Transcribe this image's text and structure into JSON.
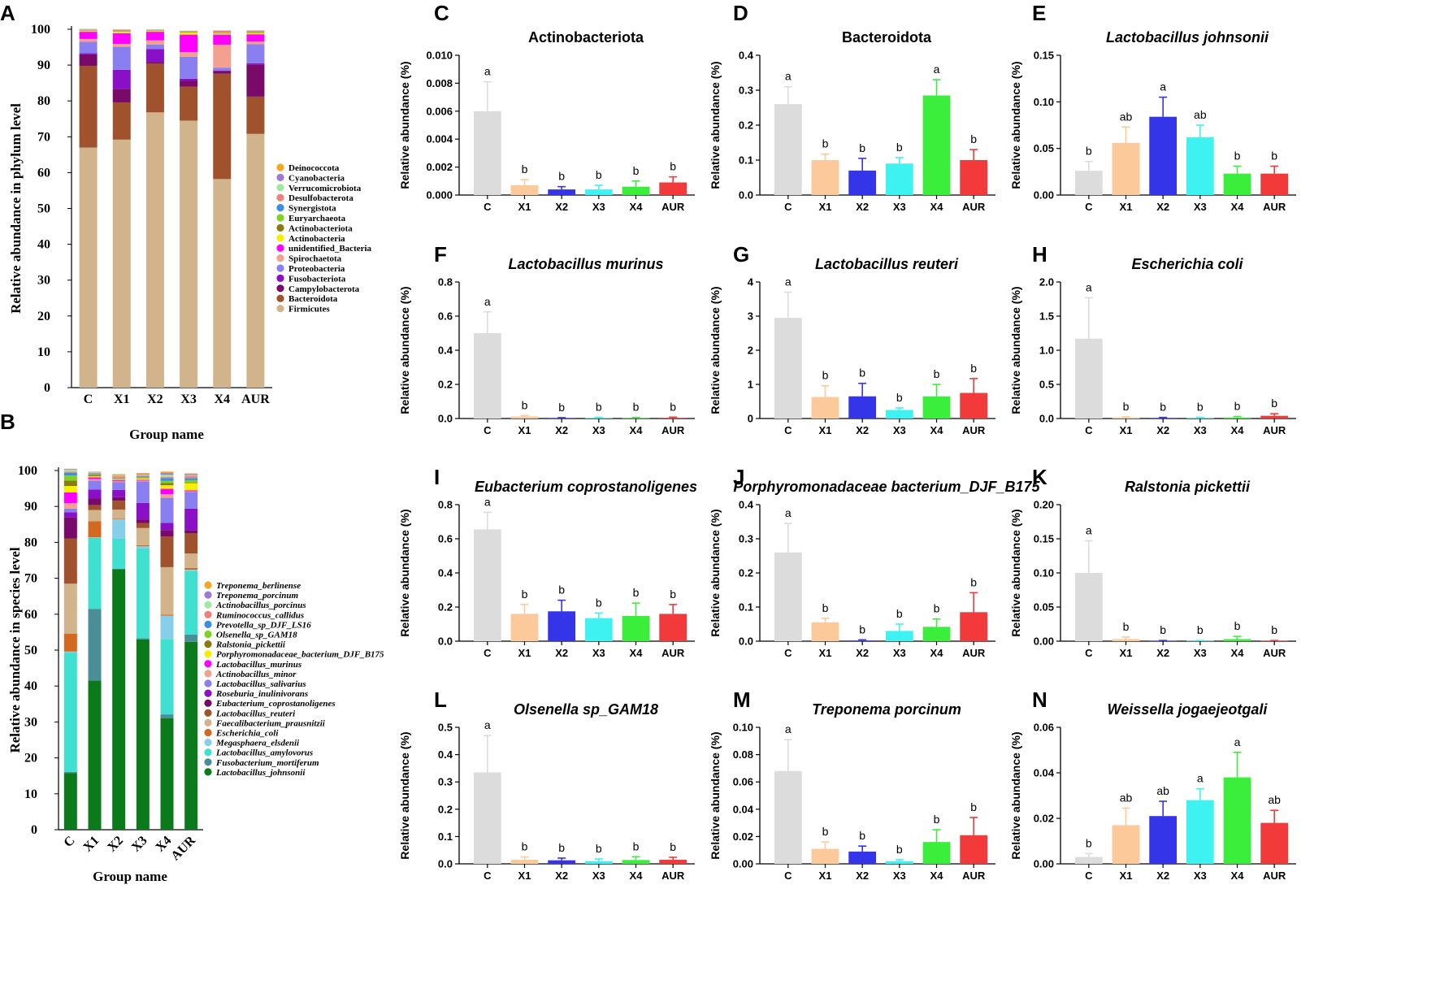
{
  "chart_data": [
    {
      "panel": "A",
      "type": "stacked-bar",
      "categories": [
        "C",
        "X1",
        "X2",
        "X3",
        "X4",
        "AUR"
      ],
      "xlabel": "Group name",
      "ylabel": "Relative abundance in phylum level",
      "ylim": [
        0,
        100
      ],
      "yticks": [
        0,
        10,
        20,
        30,
        40,
        50,
        60,
        70,
        80,
        90,
        100
      ],
      "legend_italic": false,
      "legend": [
        "Deinococcota",
        "Cyanobacteria",
        "Verrucomicrobiota",
        "Desulfobacterota",
        "Synergistota",
        "Euryarchaeota",
        "Actinobacteriota",
        "Actinobacteria",
        "unidentified_Bacteria",
        "Spirochaetota",
        "Proteobacteria",
        "Fusobacteriota",
        "Campylobacterota",
        "Bacteroidota",
        "Firmicutes"
      ],
      "colors": [
        "#f5a623",
        "#9b7bd4",
        "#9ee8a0",
        "#f08080",
        "#3c8fe0",
        "#7ed321",
        "#8a7a10",
        "#f5f000",
        "#ff00ff",
        "#f4a090",
        "#8a7ff0",
        "#8a10c8",
        "#7a0a6a",
        "#a0522d",
        "#d2b48c"
      ],
      "series": [
        {
          "name": "Firmicutes",
          "values": [
            67,
            69.2,
            76.8,
            74.5,
            58.2,
            70.8
          ]
        },
        {
          "name": "Bacteroidota",
          "values": [
            22.8,
            10.4,
            13.6,
            9.5,
            29.4,
            10.4
          ]
        },
        {
          "name": "Campylobacterota",
          "values": [
            3.2,
            3.8,
            0.5,
            1.6,
            0.8,
            9.0
          ]
        },
        {
          "name": "Fusobacteriota",
          "values": [
            0.3,
            5.3,
            3.6,
            0.6,
            0.1,
            0.3
          ]
        },
        {
          "name": "Proteobacteria",
          "values": [
            3.2,
            6.4,
            1.2,
            6.1,
            0.8,
            5.3
          ]
        },
        {
          "name": "Spirochaetota",
          "values": [
            0.8,
            0.8,
            1.2,
            1.3,
            6.4,
            0.8
          ]
        },
        {
          "name": "unidentified_Bacteria",
          "values": [
            2.0,
            3.0,
            2.4,
            4.9,
            2.8,
            2.0
          ]
        },
        {
          "name": "Actinobacteria",
          "values": [
            0.2,
            0.4,
            0.2,
            0.6,
            0.3,
            0.3
          ]
        },
        {
          "name": "Actinobacteriota",
          "values": [
            0.1,
            0.1,
            0.1,
            0.1,
            0.1,
            0.1
          ]
        },
        {
          "name": "Euryarchaeota",
          "values": [
            0.1,
            0.1,
            0.1,
            0.1,
            0.1,
            0.2
          ]
        },
        {
          "name": "Synergistota",
          "values": [
            0.05,
            0.05,
            0.05,
            0.05,
            0.05,
            0.05
          ]
        },
        {
          "name": "Desulfobacterota",
          "values": [
            0.2,
            0.3,
            0.1,
            0.1,
            0.5,
            0.3
          ]
        },
        {
          "name": "Verrucomicrobiota",
          "values": [
            0.05,
            0.05,
            0.05,
            0.05,
            0.05,
            0.05
          ]
        },
        {
          "name": "Cyanobacteria",
          "values": [
            0.05,
            0.05,
            0.05,
            0.05,
            0.05,
            0.05
          ]
        },
        {
          "name": "Deinococcota",
          "values": [
            0.05,
            0.05,
            0.05,
            0.05,
            0.05,
            0.05
          ]
        }
      ]
    },
    {
      "panel": "B",
      "type": "stacked-bar",
      "categories": [
        "C",
        "X1",
        "X2",
        "X3",
        "X4",
        "AUR"
      ],
      "xlabel": "Group name",
      "ylabel": "Relative abundance in species level",
      "ylim": [
        0,
        100
      ],
      "yticks": [
        0,
        10,
        20,
        30,
        40,
        50,
        60,
        70,
        80,
        90,
        100
      ],
      "legend_italic": true,
      "legend": [
        "Treponema_berlinense",
        "Treponema_porcinum",
        "Actinobacillus_porcinus",
        "Ruminococcus_callidus",
        "Prevotella_sp_DJF_LS16",
        "Olsenella_sp_GAM18",
        "Ralstonia_pickettii",
        "Porphyromonadaceae_bacterium_DJF_B175",
        "Lactobacillus_murinus",
        "Actinobacillus_minor",
        "Lactobacillus_salivarius",
        "Roseburia_inulinivorans",
        "Eubacterium_coprostanoligenes",
        "Lactobacillus_reuteri",
        "Faecalibacterium_prausnitzii",
        "Escherichia_coli",
        "Megasphaera_elsdenii",
        "Lactobacillus_amylovorus",
        "Fusobacterium_mortiferum",
        "Lactobacillus_johnsonii"
      ],
      "colors": [
        "#f5a623",
        "#9b7bd4",
        "#9ee8a0",
        "#f08080",
        "#3c8fe0",
        "#7ed321",
        "#8a7a10",
        "#f5f000",
        "#ff00ff",
        "#f4a090",
        "#8a7ff0",
        "#8a10c8",
        "#7a0a6a",
        "#a0522d",
        "#d2b48c",
        "#d2691e",
        "#87ceeb",
        "#40e0d0",
        "#4a8f95",
        "#0a7a1a"
      ],
      "series": [
        {
          "name": "Lactobacillus_johnsonii",
          "values": [
            15.8,
            41.5,
            72.5,
            53.0,
            31.0,
            52.3
          ]
        },
        {
          "name": "Fusobacterium_mortiferum",
          "values": [
            0.3,
            20.0,
            0.2,
            0.3,
            1.1,
            2.0
          ]
        },
        {
          "name": "Lactobacillus_amylovorus",
          "values": [
            33.2,
            19.8,
            8.3,
            25.0,
            21.0,
            17.8
          ]
        },
        {
          "name": "Megasphaera_elsdenii",
          "values": [
            0.3,
            0.1,
            5.4,
            0.6,
            6.5,
            0.3
          ]
        },
        {
          "name": "Escherichia_coli",
          "values": [
            5.0,
            4.5,
            0.2,
            0.3,
            0.3,
            0.5
          ]
        },
        {
          "name": "Faecalibacterium_prausnitzii",
          "values": [
            13.9,
            3.1,
            2.5,
            4.8,
            13.2,
            4.0
          ]
        },
        {
          "name": "Lactobacillus_reuteri",
          "values": [
            12.6,
            1.4,
            2.5,
            1.4,
            8.5,
            5.6
          ]
        },
        {
          "name": "Eubacterium_coprostanoligenes",
          "values": [
            5.8,
            1.8,
            1.0,
            1.0,
            1.8,
            0.9
          ]
        },
        {
          "name": "Roseburia_inulinivorans",
          "values": [
            1.5,
            2.5,
            2.0,
            4.6,
            2.0,
            6.0
          ]
        },
        {
          "name": "Lactobacillus_salivarius",
          "values": [
            1.0,
            2.5,
            2.2,
            6.0,
            7.0,
            4.6
          ]
        },
        {
          "name": "Actinobacillus_minor",
          "values": [
            1.5,
            0.4,
            0.2,
            0.2,
            1.0,
            0.2
          ]
        },
        {
          "name": "Lactobacillus_murinus",
          "values": [
            3.0,
            0.5,
            0.3,
            0.2,
            1.5,
            0.3
          ]
        },
        {
          "name": "Porphyromonadaceae_bacterium_DJF_B175",
          "values": [
            1.8,
            0.3,
            0.2,
            0.4,
            1.0,
            2.0
          ]
        },
        {
          "name": "Ralstonia_pickettii",
          "values": [
            1.5,
            0.3,
            0.1,
            0.1,
            0.6,
            0.2
          ]
        },
        {
          "name": "Olsenella_sp_GAM18",
          "values": [
            1.4,
            0.2,
            0.2,
            0.2,
            0.6,
            0.6
          ]
        },
        {
          "name": "Prevotella_sp_DJF_LS16",
          "values": [
            0.8,
            0.2,
            0.1,
            0.2,
            0.8,
            0.6
          ]
        },
        {
          "name": "Ruminococcus_callidus",
          "values": [
            0.3,
            0.2,
            0.5,
            0.3,
            0.3,
            0.6
          ]
        },
        {
          "name": "Actinobacillus_porcinus",
          "values": [
            0.5,
            0.2,
            0.2,
            0.2,
            0.6,
            0.2
          ]
        },
        {
          "name": "Treponema_porcinum",
          "values": [
            0.2,
            0.1,
            0.1,
            0.2,
            0.5,
            0.3
          ]
        },
        {
          "name": "Treponema_berlinense",
          "values": [
            0.1,
            0.1,
            0.3,
            0.3,
            0.4,
            0.2
          ]
        }
      ]
    },
    {
      "panel": "C",
      "type": "bar",
      "title": "Actinobacteriota",
      "italic": false,
      "ylabel": "Relative abundance (%)",
      "categories": [
        "C",
        "X1",
        "X2",
        "X3",
        "X4",
        "AUR"
      ],
      "values": [
        0.006,
        0.0007,
        0.0004,
        0.0004,
        0.0006,
        0.0009
      ],
      "errors": [
        0.0021,
        0.0004,
        0.0002,
        0.0003,
        0.0004,
        0.0004
      ],
      "letters": [
        "a",
        "b",
        "b",
        "b",
        "b",
        "b"
      ],
      "ylim": [
        0,
        0.01
      ],
      "yticks": [
        "0.000",
        "0.002",
        "0.004",
        "0.006",
        "0.008",
        "0.010"
      ]
    },
    {
      "panel": "D",
      "type": "bar",
      "title": "Bacteroidota",
      "italic": false,
      "ylabel": "Relative abundance (%)",
      "categories": [
        "C",
        "X1",
        "X2",
        "X3",
        "X4",
        "AUR"
      ],
      "values": [
        0.26,
        0.1,
        0.07,
        0.09,
        0.285,
        0.1
      ],
      "errors": [
        0.05,
        0.017,
        0.035,
        0.017,
        0.045,
        0.03
      ],
      "letters": [
        "a",
        "b",
        "b",
        "b",
        "a",
        "b"
      ],
      "ylim": [
        0,
        0.4
      ],
      "yticks": [
        "0.0",
        "0.1",
        "0.2",
        "0.3",
        "0.4"
      ]
    },
    {
      "panel": "E",
      "type": "bar",
      "title": "Lactobacillus johnsonii",
      "italic": true,
      "ylabel": "Relative abundance (%)",
      "categories": [
        "C",
        "X1",
        "X2",
        "X3",
        "X4",
        "AUR"
      ],
      "values": [
        0.026,
        0.056,
        0.084,
        0.062,
        0.023,
        0.023
      ],
      "errors": [
        0.01,
        0.017,
        0.021,
        0.013,
        0.008,
        0.008
      ],
      "letters": [
        "b",
        "ab",
        "a",
        "ab",
        "b",
        "b"
      ],
      "ylim": [
        0,
        0.15
      ],
      "yticks": [
        "0.00",
        "0.05",
        "0.10",
        "0.15"
      ]
    },
    {
      "panel": "F",
      "type": "bar",
      "title": "Lactobacillus murinus",
      "italic": true,
      "ylabel": "Relative abundance (%)",
      "categories": [
        "C",
        "X1",
        "X2",
        "X3",
        "X4",
        "AUR"
      ],
      "values": [
        0.5,
        0.012,
        0.003,
        0.003,
        0.002,
        0.004
      ],
      "errors": [
        0.125,
        0.005,
        0.002,
        0.004,
        0.004,
        0.004
      ],
      "letters": [
        "a",
        "b",
        "b",
        "b",
        "b",
        "b"
      ],
      "ylim": [
        0,
        0.8
      ],
      "yticks": [
        "0.0",
        "0.2",
        "0.4",
        "0.6",
        "0.8"
      ]
    },
    {
      "panel": "G",
      "type": "bar",
      "title": "Lactobacillus reuteri",
      "italic": true,
      "ylabel": "Relative abundance (%)",
      "categories": [
        "C",
        "X1",
        "X2",
        "X3",
        "X4",
        "AUR"
      ],
      "values": [
        2.95,
        0.63,
        0.65,
        0.25,
        0.65,
        0.75
      ],
      "errors": [
        0.75,
        0.33,
        0.38,
        0.06,
        0.35,
        0.42
      ],
      "letters": [
        "a",
        "b",
        "b",
        "b",
        "b",
        "b"
      ],
      "ylim": [
        0,
        4
      ],
      "yticks": [
        "0",
        "1",
        "2",
        "3",
        "4"
      ]
    },
    {
      "panel": "H",
      "type": "bar",
      "title": "Escherichia coli",
      "italic": true,
      "ylabel": "Relative abundance (%)",
      "categories": [
        "C",
        "X1",
        "X2",
        "X3",
        "X4",
        "AUR"
      ],
      "values": [
        1.17,
        0.015,
        0.008,
        0.008,
        0.015,
        0.04
      ],
      "errors": [
        0.6,
        0.01,
        0.008,
        0.008,
        0.015,
        0.03
      ],
      "letters": [
        "a",
        "b",
        "b",
        "b",
        "b",
        "b"
      ],
      "ylim": [
        0,
        2
      ],
      "yticks": [
        "0.0",
        "0.5",
        "1.0",
        "1.5",
        "2.0"
      ]
    },
    {
      "panel": "I",
      "type": "bar",
      "title": "Eubacterium coprostanoligenes",
      "italic": true,
      "ylabel": "Relative abundance (%)",
      "categories": [
        "C",
        "X1",
        "X2",
        "X3",
        "X4",
        "AUR"
      ],
      "values": [
        0.655,
        0.16,
        0.175,
        0.135,
        0.148,
        0.16
      ],
      "errors": [
        0.1,
        0.055,
        0.065,
        0.03,
        0.075,
        0.055
      ],
      "letters": [
        "a",
        "b",
        "b",
        "b",
        "b",
        "b"
      ],
      "ylim": [
        0,
        0.8
      ],
      "yticks": [
        "0.0",
        "0.2",
        "0.4",
        "0.6",
        "0.8"
      ]
    },
    {
      "panel": "J",
      "type": "bar",
      "title": "Porphyromonadaceae bacterium_DJF_B175",
      "italic": true,
      "ylabel": "Relative abundance (%)",
      "categories": [
        "C",
        "X1",
        "X2",
        "X3",
        "X4",
        "AUR"
      ],
      "values": [
        0.26,
        0.055,
        0.002,
        0.03,
        0.042,
        0.085
      ],
      "errors": [
        0.085,
        0.012,
        0.002,
        0.02,
        0.023,
        0.057
      ],
      "letters": [
        "a",
        "b",
        "b",
        "b",
        "b",
        "b"
      ],
      "ylim": [
        0,
        0.4
      ],
      "yticks": [
        "0.0",
        "0.1",
        "0.2",
        "0.3",
        "0.4"
      ]
    },
    {
      "panel": "K",
      "type": "bar",
      "title": "Ralstonia pickettii",
      "italic": true,
      "ylabel": "Relative abundance (%)",
      "categories": [
        "C",
        "X1",
        "X2",
        "X3",
        "X4",
        "AUR"
      ],
      "values": [
        0.1,
        0.003,
        0.0005,
        0.0005,
        0.003,
        0.0005
      ],
      "errors": [
        0.047,
        0.003,
        0.0005,
        0.0005,
        0.004,
        0.0005
      ],
      "letters": [
        "a",
        "b",
        "b",
        "b",
        "b",
        "b"
      ],
      "ylim": [
        0,
        0.2
      ],
      "yticks": [
        "0.00",
        "0.05",
        "0.10",
        "0.15",
        "0.20"
      ]
    },
    {
      "panel": "L",
      "type": "bar",
      "title": "Olsenella sp_GAM18",
      "italic": true,
      "ylabel": "Relative abundance (%)",
      "categories": [
        "C",
        "X1",
        "X2",
        "X3",
        "X4",
        "AUR"
      ],
      "values": [
        0.335,
        0.015,
        0.013,
        0.01,
        0.014,
        0.015
      ],
      "errors": [
        0.135,
        0.01,
        0.008,
        0.008,
        0.012,
        0.009
      ],
      "letters": [
        "a",
        "b",
        "b",
        "b",
        "b",
        "b"
      ],
      "ylim": [
        0,
        0.5
      ],
      "yticks": [
        "0.0",
        "0.1",
        "0.2",
        "0.3",
        "0.4",
        "0.5"
      ]
    },
    {
      "panel": "M",
      "type": "bar",
      "title": "Treponema porcinum",
      "italic": true,
      "ylabel": "Relative abundance (%)",
      "categories": [
        "C",
        "X1",
        "X2",
        "X3",
        "X4",
        "AUR"
      ],
      "values": [
        0.068,
        0.011,
        0.009,
        0.002,
        0.016,
        0.021
      ],
      "errors": [
        0.023,
        0.005,
        0.004,
        0.001,
        0.009,
        0.013
      ],
      "letters": [
        "a",
        "b",
        "b",
        "b",
        "b",
        "b"
      ],
      "ylim": [
        0,
        0.1
      ],
      "yticks": [
        "0.00",
        "0.02",
        "0.04",
        "0.06",
        "0.08",
        "0.10"
      ]
    },
    {
      "panel": "N",
      "type": "bar",
      "title": "Weissella jogaejeotgali",
      "italic": true,
      "ylabel": "Relative abundance (%)",
      "categories": [
        "C",
        "X1",
        "X2",
        "X3",
        "X4",
        "AUR"
      ],
      "values": [
        0.003,
        0.017,
        0.021,
        0.028,
        0.038,
        0.018
      ],
      "errors": [
        0.0015,
        0.0075,
        0.0065,
        0.005,
        0.011,
        0.0055
      ],
      "letters": [
        "b",
        "ab",
        "ab",
        "a",
        "a",
        "ab"
      ],
      "ylim": [
        0,
        0.06
      ],
      "yticks": [
        "0.00",
        "0.02",
        "0.04",
        "0.06"
      ]
    }
  ],
  "bar_colors": {
    "C": "#dcdcdc",
    "X1": "#fbc99a",
    "X2": "#3434e8",
    "X3": "#3ef2f2",
    "X4": "#3cee3c",
    "AUR": "#f23a3a"
  }
}
